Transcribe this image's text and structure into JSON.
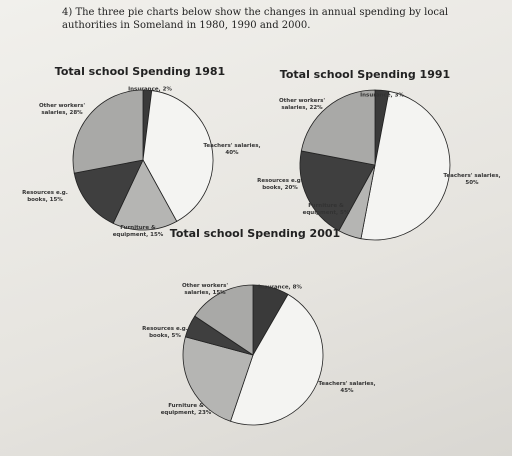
{
  "question": "4) The three pie charts below show the changes in annual spending by local authorities in Someland in 1980, 1990 and 2000.",
  "chart_data": [
    {
      "type": "pie",
      "title": "Total school Spending 1981",
      "values": [
        2,
        40,
        15,
        15,
        28
      ],
      "value_labels": [
        "Insurance, 2%",
        "Teachers' salaries, 40%",
        "Furniture & equipment, 15%",
        "Resources e.g. books, 15%",
        "Other workers' salaries, 28%"
      ],
      "colors": [
        "#3a3a3a",
        "#f4f4f2",
        "#b5b5b3",
        "#3f3f3f",
        "#a9a9a7"
      ]
    },
    {
      "type": "pie",
      "title": "Total school Spending 1991",
      "values": [
        3,
        50,
        5,
        20,
        22
      ],
      "value_labels": [
        "Insurance, 3%",
        "Teachers' salaries, 50%",
        "Furniture & equipment, 5%",
        "Resources e.g. books, 20%",
        "Other workers' salaries, 22%"
      ],
      "colors": [
        "#3a3a3a",
        "#f4f4f2",
        "#b5b5b3",
        "#3f3f3f",
        "#a9a9a7"
      ]
    },
    {
      "type": "pie",
      "title": "Total school Spending 2001",
      "values": [
        8,
        45,
        23,
        5,
        15
      ],
      "value_labels": [
        "Insurance, 8%",
        "Teachers' salaries, 45%",
        "Furniture & equipment, 23%",
        "Resources e.g. books, 5%",
        "Other workers' salaries, 15%"
      ],
      "colors": [
        "#3a3a3a",
        "#f4f4f2",
        "#b5b5b3",
        "#3f3f3f",
        "#a9a9a7"
      ]
    }
  ]
}
